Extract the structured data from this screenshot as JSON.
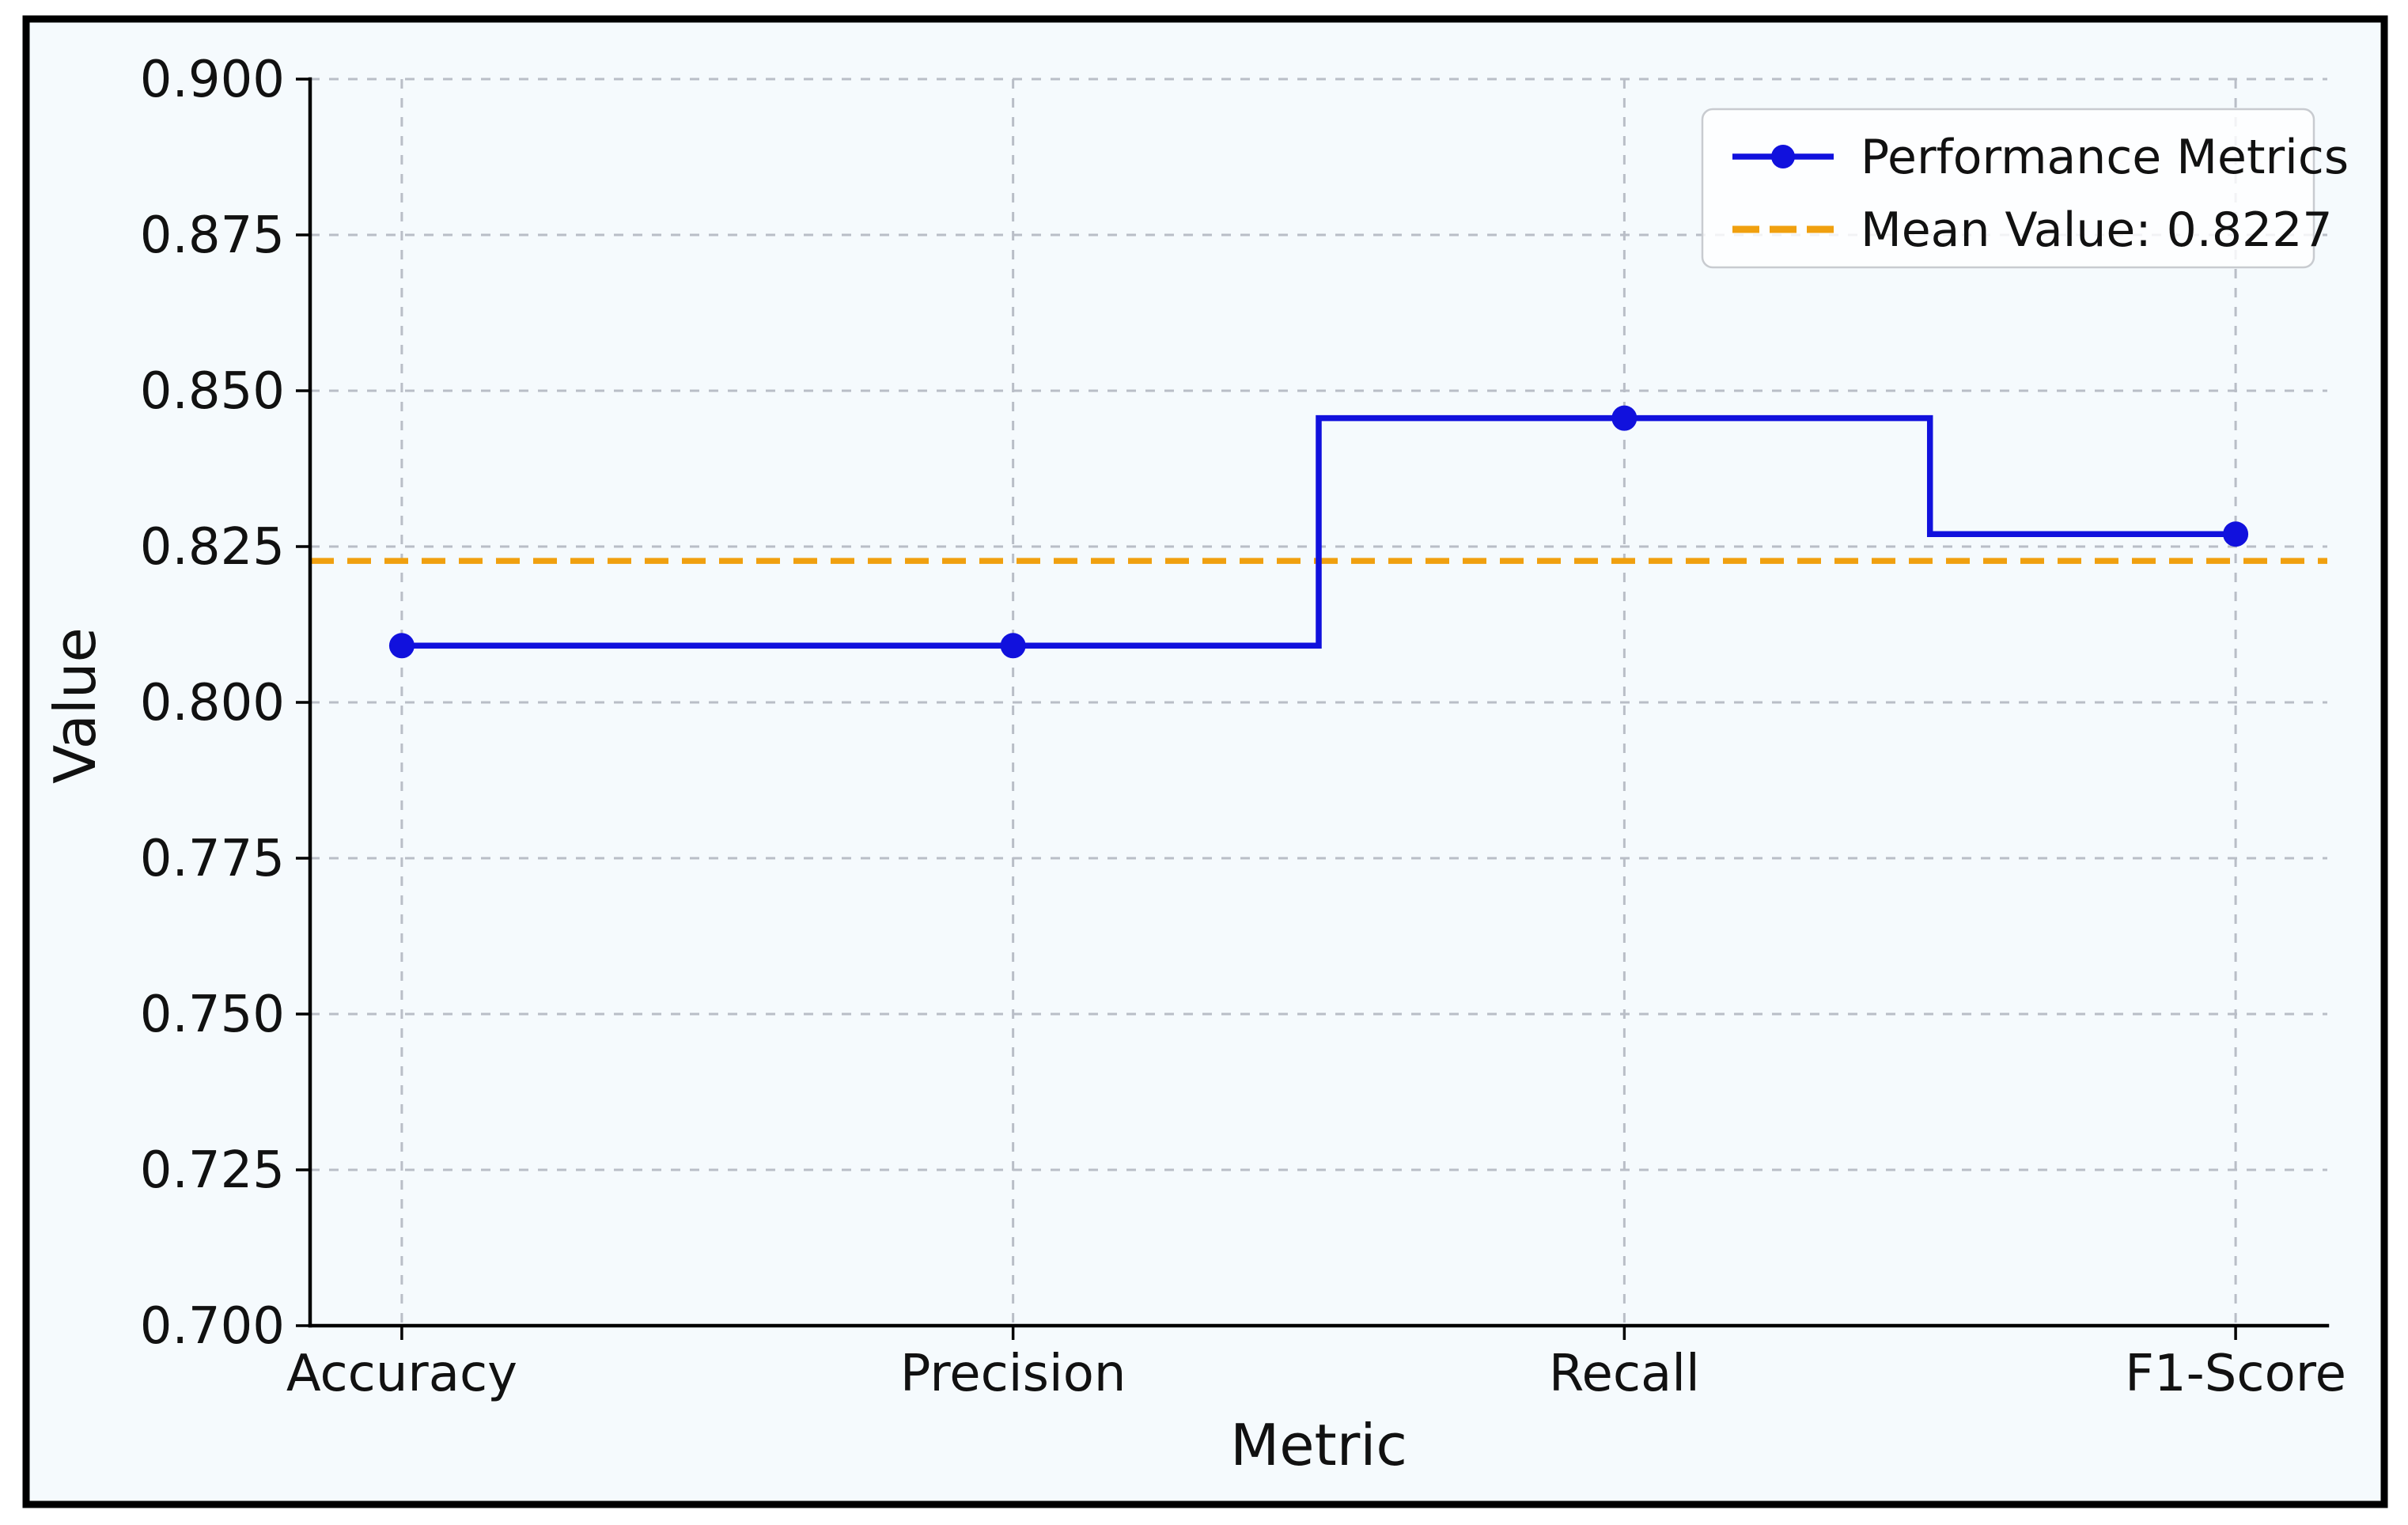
{
  "figure": {
    "background": "#ffffff",
    "plot_background": "#f5fafd",
    "border_color": "#000000",
    "grid_color": "#b9bec7",
    "text_color": "#111111"
  },
  "chart_data": {
    "type": "line",
    "subtype": "step-mid",
    "title": "",
    "xlabel": "Metric",
    "ylabel": "Value",
    "categories": [
      "Accuracy",
      "Precision",
      "Recall",
      "F1-Score"
    ],
    "series": [
      {
        "name": "Performance Metrics",
        "values": [
          0.8091,
          0.8091,
          0.8456,
          0.827
        ],
        "color": "#1111dd",
        "marker": "circle",
        "line_style": "solid"
      }
    ],
    "mean_line": {
      "label": "Mean Value: 0.8227",
      "value": 0.8227,
      "color": "#f0a00f",
      "line_style": "dashed"
    },
    "ylim": [
      0.7,
      0.9
    ],
    "yticks": [
      "0.700",
      "0.725",
      "0.750",
      "0.775",
      "0.800",
      "0.825",
      "0.850",
      "0.875",
      "0.900"
    ],
    "grid": "dashed",
    "legend": {
      "position": "upper-right",
      "entries": [
        "Performance Metrics",
        "Mean Value: 0.8227"
      ]
    }
  }
}
